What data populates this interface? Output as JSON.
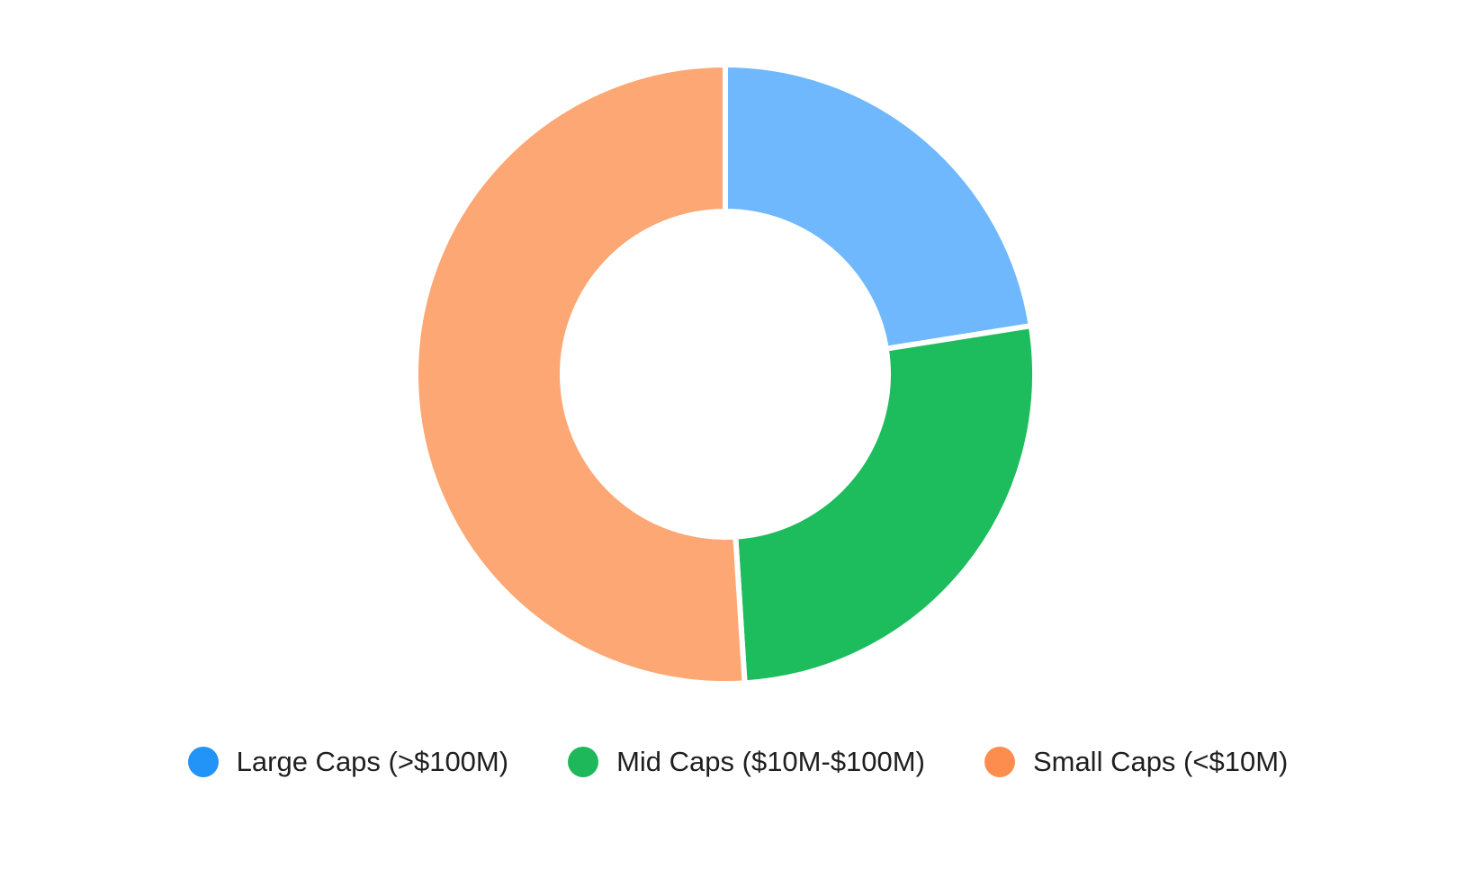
{
  "chart_data": {
    "type": "pie",
    "variant": "donut",
    "title": "",
    "legend_position": "bottom",
    "series": [
      {
        "name": "Large Caps (>$100M)",
        "value": 22.5,
        "color": "#6fb8fd",
        "legend_color": "#2293f7"
      },
      {
        "name": "Mid Caps ($10M-$100M)",
        "value": 26.5,
        "color": "#1dbc5d",
        "legend_color": "#1eb85a"
      },
      {
        "name": "Small Caps (<$10M)",
        "value": 51.0,
        "color": "#fda774",
        "legend_color": "#fd8d4e"
      }
    ]
  }
}
